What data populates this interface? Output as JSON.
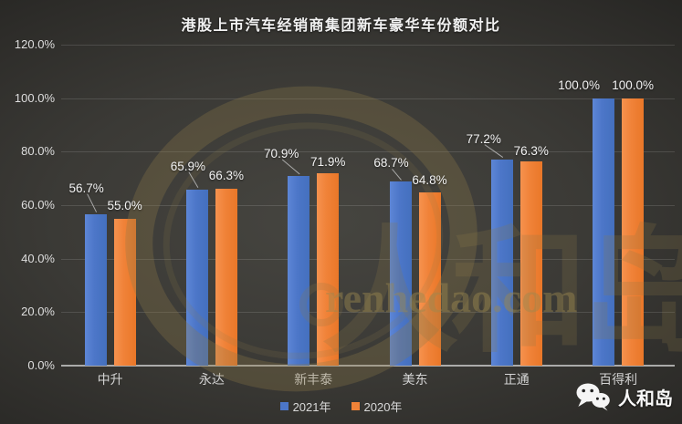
{
  "chart_data": {
    "type": "bar",
    "title": "港股上市汽车经销商集团新车豪华车份额对比",
    "categories": [
      "中升",
      "永达",
      "新丰泰",
      "美东",
      "正通",
      "百得利"
    ],
    "series": [
      {
        "name": "2021年",
        "color": "#4c76c8",
        "values": [
          56.7,
          65.9,
          70.9,
          68.7,
          77.2,
          100.0
        ]
      },
      {
        "name": "2020年",
        "color": "#f08238",
        "values": [
          55.0,
          66.3,
          71.9,
          64.8,
          76.3,
          100.0
        ]
      }
    ],
    "value_labels": [
      [
        "56.7%",
        "65.9%",
        "70.9%",
        "68.7%",
        "77.2%",
        "100.0%"
      ],
      [
        "55.0%",
        "66.3%",
        "71.9%",
        "64.8%",
        "76.3%",
        "100.0%"
      ]
    ],
    "ylim": [
      0,
      120
    ],
    "y_ticks": [
      {
        "value": 120,
        "label": "120.0%"
      },
      {
        "value": 100,
        "label": "100.0%"
      },
      {
        "value": 80,
        "label": "80.0%"
      },
      {
        "value": 60,
        "label": "60.0%"
      },
      {
        "value": 40,
        "label": "40.0%"
      },
      {
        "value": 20,
        "label": "20.0%"
      },
      {
        "value": 0,
        "label": "0.0%"
      }
    ],
    "grid": true,
    "legend_position": "bottom"
  },
  "watermark": {
    "logo_text": "人和岛",
    "domain_text": "renhedao.com",
    "color": "#8d7a48"
  },
  "branding": {
    "wechat_icon": "wechat-logo",
    "name": "人和岛"
  }
}
